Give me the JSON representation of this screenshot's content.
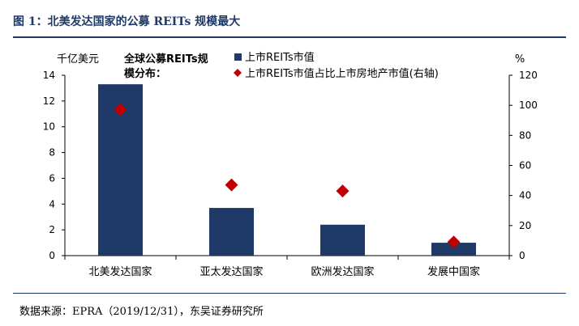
{
  "figure_title": "图 1：北美发达国家的公募 REITs 规模最大",
  "source_note": "数据来源：EPRA（2019/12/31），东吴证券研究所",
  "chart_data": {
    "type": "bar",
    "title": "全球公募REITs规模分布：",
    "title_lines": [
      "全球公募REITs规",
      "模分布："
    ],
    "left_unit": "千亿美元",
    "right_unit": "%",
    "categories": [
      "北美发达国家",
      "亚太发达国家",
      "欧洲发达国家",
      "发展中国家"
    ],
    "series": [
      {
        "name": "上市REITs市值",
        "kind": "bar",
        "axis": "left",
        "color": "#1f3a68",
        "values": [
          13.3,
          3.7,
          2.4,
          1.0
        ]
      },
      {
        "name": "上市REITs市值占比上市房地产市值(右轴)",
        "kind": "marker",
        "axis": "right",
        "color": "#c00000",
        "values": [
          97,
          47,
          43,
          9
        ]
      }
    ],
    "ylim_left": [
      0,
      14
    ],
    "yticks_left": [
      "0",
      "2",
      "4",
      "6",
      "8",
      "10",
      "12",
      "14"
    ],
    "ylim_right": [
      0,
      120
    ],
    "yticks_right": [
      "0",
      "20",
      "40",
      "60",
      "80",
      "100",
      "120"
    ],
    "grid": false,
    "legend_position": "top"
  }
}
